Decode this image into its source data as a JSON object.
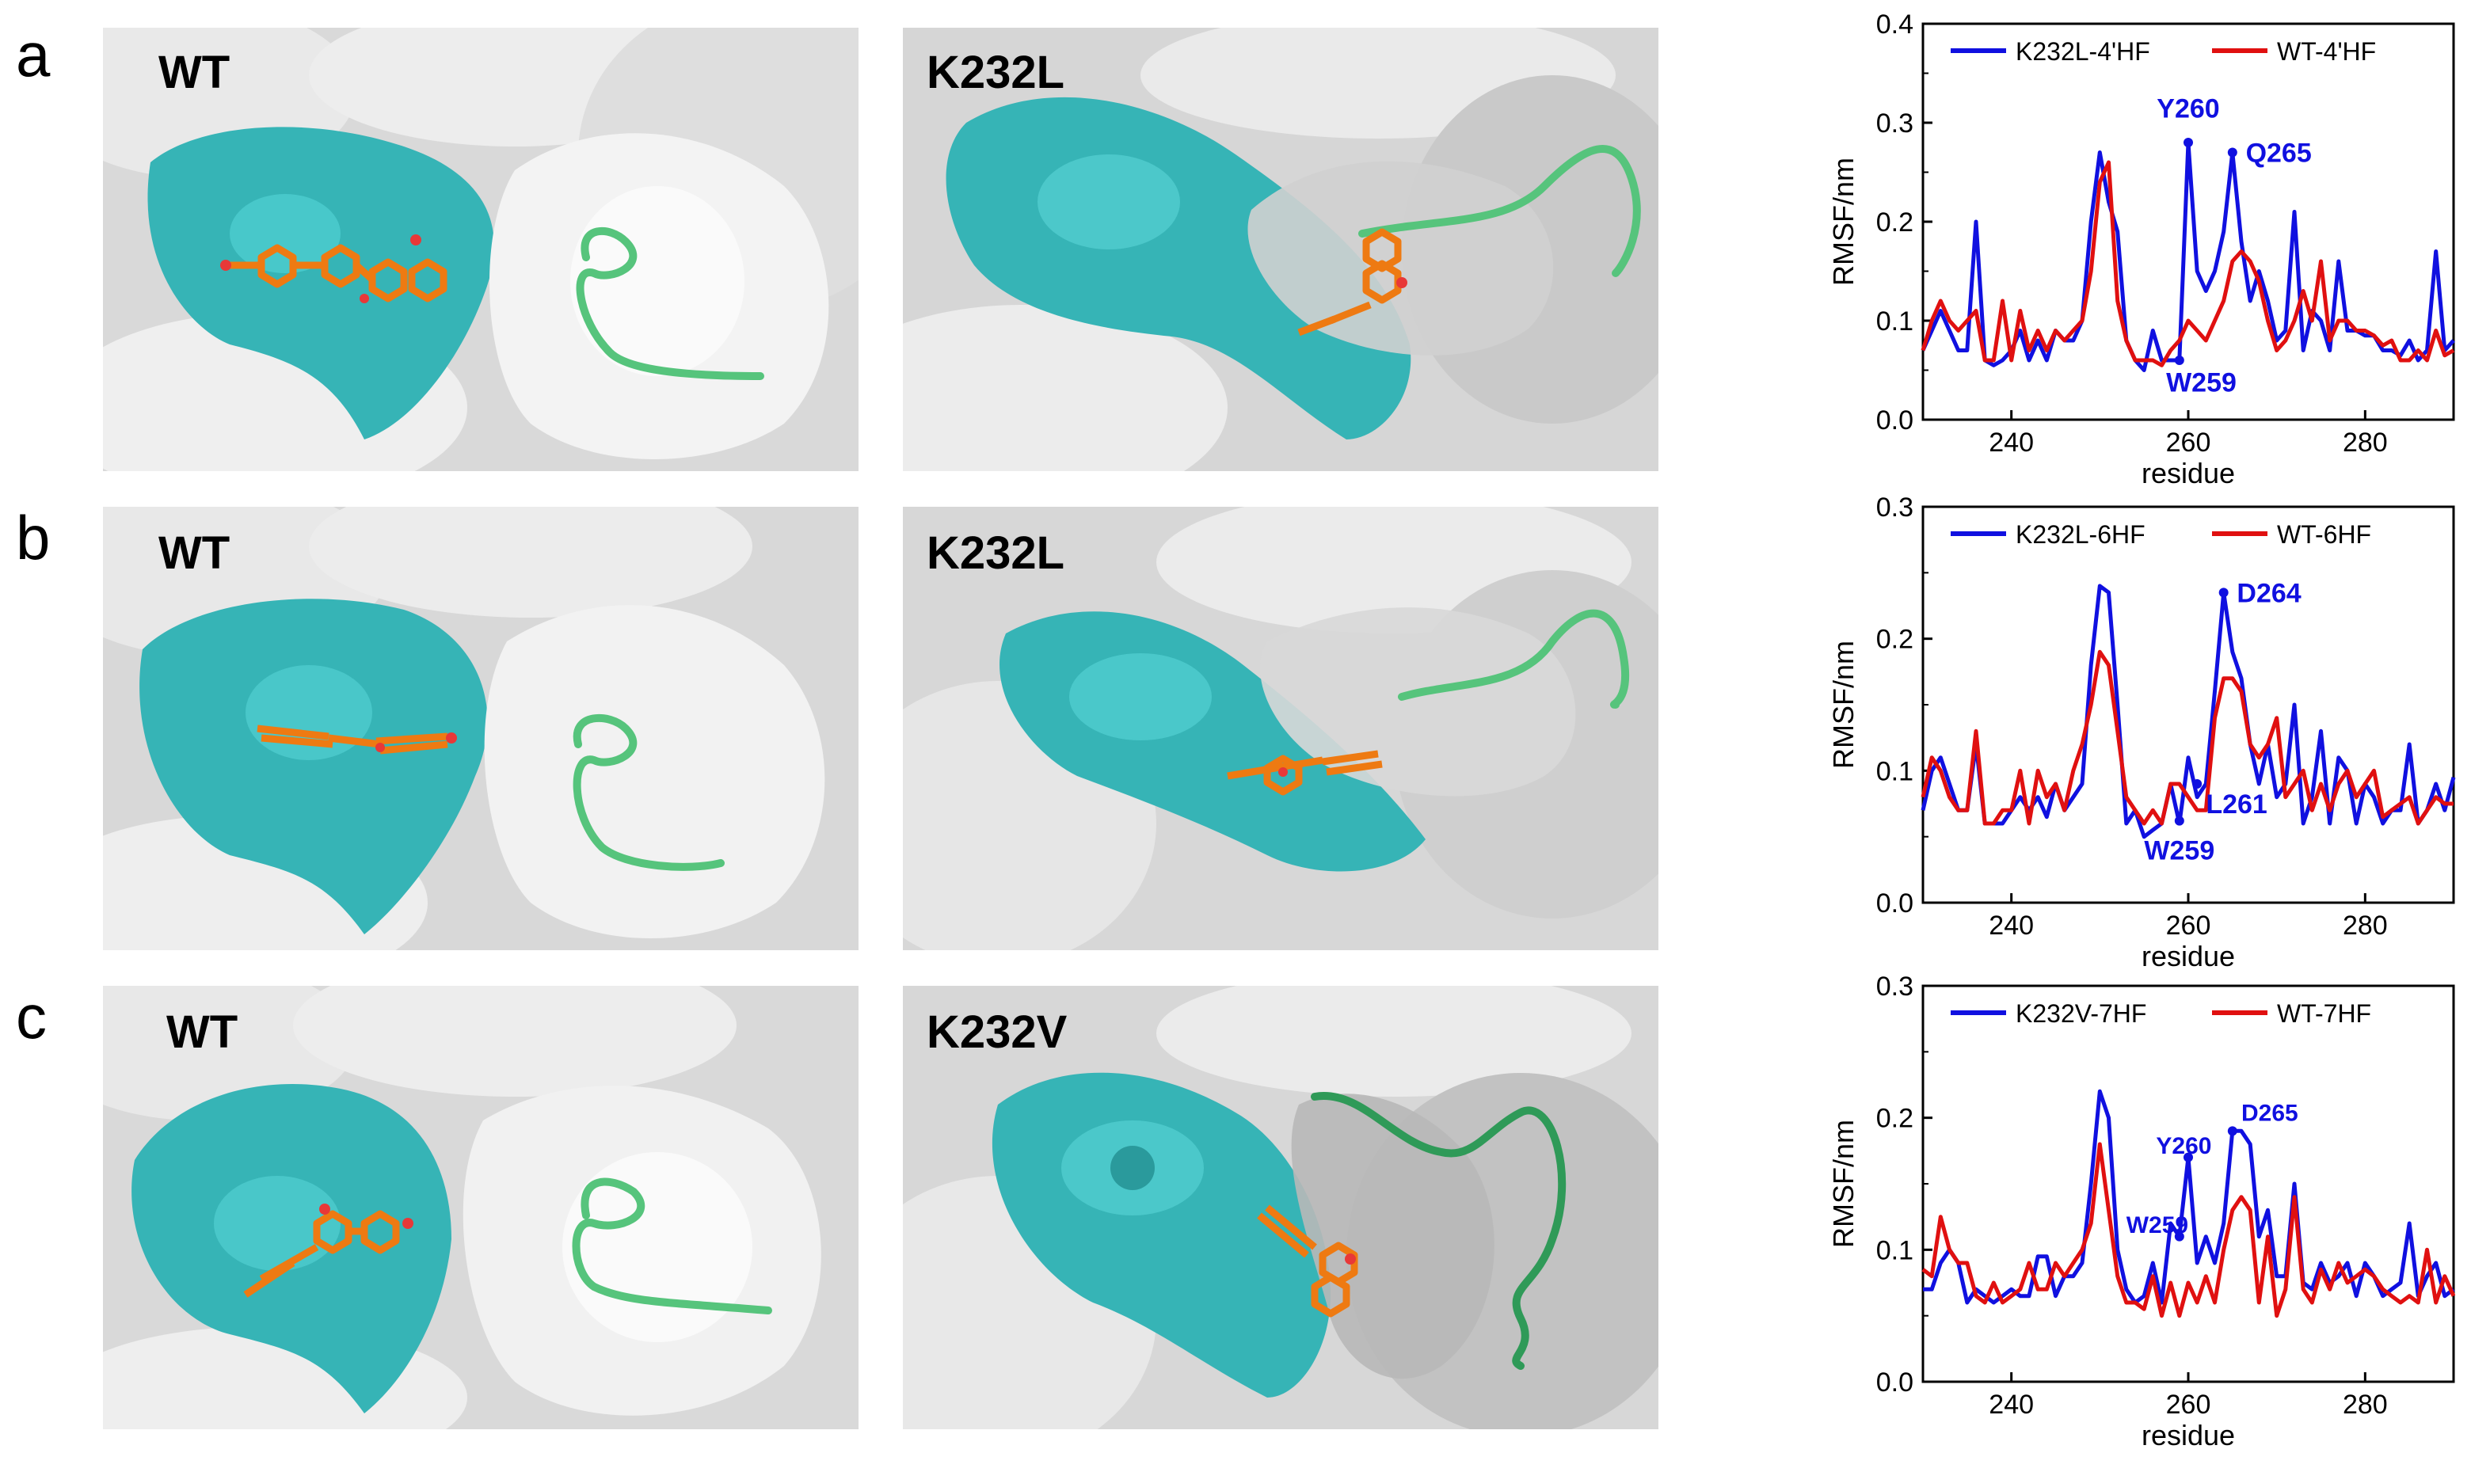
{
  "rows": [
    {
      "letter": "a",
      "left_label": "WT",
      "right_label": "K232L",
      "chart_data": {
        "type": "line",
        "xlabel": "residue",
        "ylabel": "RMSF/nm",
        "xlim": [
          230,
          290
        ],
        "ylim": [
          0,
          0.4
        ],
        "xticks": [
          "240",
          "260",
          "280"
        ],
        "yticks": [
          "0.0",
          "0.1",
          "0.2",
          "0.3",
          "0.4"
        ],
        "legend_position": "top",
        "series": [
          {
            "name": "K232L-4'HF",
            "color": "#1010e0",
            "x": [
              230,
              231,
              232,
              233,
              234,
              235,
              236,
              237,
              238,
              239,
              240,
              241,
              242,
              243,
              244,
              245,
              246,
              247,
              248,
              249,
              250,
              251,
              252,
              253,
              254,
              255,
              256,
              257,
              258,
              259,
              260,
              261,
              262,
              263,
              264,
              265,
              266,
              267,
              268,
              269,
              270,
              271,
              272,
              273,
              274,
              275,
              276,
              277,
              278,
              279,
              280,
              281,
              282,
              283,
              284,
              285,
              286,
              287,
              288,
              289,
              290
            ],
            "y": [
              0.07,
              0.09,
              0.11,
              0.09,
              0.07,
              0.07,
              0.2,
              0.06,
              0.055,
              0.06,
              0.07,
              0.09,
              0.06,
              0.08,
              0.06,
              0.09,
              0.08,
              0.08,
              0.1,
              0.2,
              0.27,
              0.22,
              0.19,
              0.08,
              0.06,
              0.05,
              0.09,
              0.06,
              0.06,
              0.06,
              0.28,
              0.15,
              0.13,
              0.15,
              0.19,
              0.27,
              0.18,
              0.12,
              0.15,
              0.12,
              0.08,
              0.09,
              0.21,
              0.07,
              0.11,
              0.1,
              0.07,
              0.16,
              0.09,
              0.09,
              0.085,
              0.085,
              0.07,
              0.07,
              0.065,
              0.08,
              0.06,
              0.07,
              0.17,
              0.07,
              0.08
            ]
          },
          {
            "name": "WT-4'HF",
            "color": "#e01010",
            "x": [
              230,
              231,
              232,
              233,
              234,
              235,
              236,
              237,
              238,
              239,
              240,
              241,
              242,
              243,
              244,
              245,
              246,
              247,
              248,
              249,
              250,
              251,
              252,
              253,
              254,
              255,
              256,
              257,
              258,
              259,
              260,
              261,
              262,
              263,
              264,
              265,
              266,
              267,
              268,
              269,
              270,
              271,
              272,
              273,
              274,
              275,
              276,
              277,
              278,
              279,
              280,
              281,
              282,
              283,
              284,
              285,
              286,
              287,
              288,
              289,
              290
            ],
            "y": [
              0.07,
              0.1,
              0.12,
              0.1,
              0.09,
              0.1,
              0.11,
              0.06,
              0.06,
              0.12,
              0.06,
              0.11,
              0.07,
              0.09,
              0.07,
              0.09,
              0.08,
              0.09,
              0.1,
              0.15,
              0.24,
              0.26,
              0.12,
              0.08,
              0.06,
              0.06,
              0.06,
              0.055,
              0.07,
              0.08,
              0.1,
              0.09,
              0.08,
              0.1,
              0.12,
              0.16,
              0.17,
              0.16,
              0.14,
              0.1,
              0.07,
              0.08,
              0.1,
              0.13,
              0.1,
              0.16,
              0.08,
              0.1,
              0.1,
              0.09,
              0.09,
              0.085,
              0.075,
              0.08,
              0.06,
              0.06,
              0.07,
              0.06,
              0.09,
              0.065,
              0.07
            ]
          }
        ],
        "annotations": [
          {
            "text": "Y260",
            "x": 260,
            "y": 0.28,
            "tx": 260,
            "ty": 0.315,
            "anchor": "middle"
          },
          {
            "text": "Q265",
            "x": 265,
            "y": 0.27,
            "tx": 266.5,
            "ty": 0.27,
            "anchor": "start"
          },
          {
            "text": "W259",
            "x": 259,
            "y": 0.06,
            "tx": 257.5,
            "ty": 0.038,
            "anchor": "start"
          }
        ],
        "annotation_font": "sans"
      }
    },
    {
      "letter": "b",
      "left_label": "WT",
      "right_label": "K232L",
      "chart_data": {
        "type": "line",
        "xlabel": "residue",
        "ylabel": "RMSF/nm",
        "xlim": [
          230,
          290
        ],
        "ylim": [
          0,
          0.3
        ],
        "xticks": [
          "240",
          "260",
          "280"
        ],
        "yticks": [
          "0.0",
          "0.1",
          "0.2",
          "0.3"
        ],
        "legend_position": "top",
        "series": [
          {
            "name": "K232L-6HF",
            "color": "#1010e0",
            "x": [
              230,
              231,
              232,
              233,
              234,
              235,
              236,
              237,
              238,
              239,
              240,
              241,
              242,
              243,
              244,
              245,
              246,
              247,
              248,
              249,
              250,
              251,
              252,
              253,
              254,
              255,
              256,
              257,
              258,
              259,
              260,
              261,
              262,
              263,
              264,
              265,
              266,
              267,
              268,
              269,
              270,
              271,
              272,
              273,
              274,
              275,
              276,
              277,
              278,
              279,
              280,
              281,
              282,
              283,
              284,
              285,
              286,
              287,
              288,
              289,
              290
            ],
            "y": [
              0.07,
              0.1,
              0.11,
              0.09,
              0.07,
              0.07,
              0.12,
              0.06,
              0.06,
              0.06,
              0.07,
              0.08,
              0.07,
              0.08,
              0.065,
              0.09,
              0.07,
              0.08,
              0.09,
              0.18,
              0.24,
              0.235,
              0.15,
              0.06,
              0.07,
              0.05,
              0.055,
              0.06,
              0.09,
              0.06,
              0.11,
              0.08,
              0.09,
              0.16,
              0.235,
              0.19,
              0.17,
              0.12,
              0.09,
              0.12,
              0.08,
              0.09,
              0.15,
              0.06,
              0.08,
              0.13,
              0.06,
              0.11,
              0.1,
              0.06,
              0.09,
              0.08,
              0.06,
              0.07,
              0.07,
              0.12,
              0.06,
              0.07,
              0.09,
              0.07,
              0.095
            ]
          },
          {
            "name": "WT-6HF",
            "color": "#e01010",
            "x": [
              230,
              231,
              232,
              233,
              234,
              235,
              236,
              237,
              238,
              239,
              240,
              241,
              242,
              243,
              244,
              245,
              246,
              247,
              248,
              249,
              250,
              251,
              252,
              253,
              254,
              255,
              256,
              257,
              258,
              259,
              260,
              261,
              262,
              263,
              264,
              265,
              266,
              267,
              268,
              269,
              270,
              271,
              272,
              273,
              274,
              275,
              276,
              277,
              278,
              279,
              280,
              281,
              282,
              283,
              284,
              285,
              286,
              287,
              288,
              289,
              290
            ],
            "y": [
              0.08,
              0.11,
              0.1,
              0.08,
              0.07,
              0.07,
              0.13,
              0.06,
              0.06,
              0.07,
              0.07,
              0.1,
              0.06,
              0.1,
              0.08,
              0.09,
              0.07,
              0.1,
              0.12,
              0.15,
              0.19,
              0.18,
              0.13,
              0.08,
              0.07,
              0.06,
              0.07,
              0.06,
              0.09,
              0.09,
              0.08,
              0.07,
              0.07,
              0.14,
              0.17,
              0.17,
              0.16,
              0.12,
              0.11,
              0.12,
              0.14,
              0.08,
              0.09,
              0.1,
              0.07,
              0.09,
              0.07,
              0.09,
              0.1,
              0.08,
              0.09,
              0.1,
              0.065,
              0.07,
              0.075,
              0.08,
              0.06,
              0.07,
              0.08,
              0.075,
              0.075
            ]
          }
        ],
        "annotations": [
          {
            "text": "D264",
            "x": 264,
            "y": 0.235,
            "tx": 265.5,
            "ty": 0.235,
            "anchor": "start"
          },
          {
            "text": "L261",
            "x": 261,
            "y": 0.09,
            "tx": 262,
            "ty": 0.075,
            "anchor": "start"
          },
          {
            "text": "W259",
            "x": 259,
            "y": 0.062,
            "tx": 259,
            "ty": 0.04,
            "anchor": "middle"
          }
        ],
        "annotation_font": "sans"
      }
    },
    {
      "letter": "c",
      "left_label": "WT",
      "right_label": "K232V",
      "chart_data": {
        "type": "line",
        "xlabel": "residue",
        "ylabel": "RMSF/nm",
        "xlim": [
          230,
          290
        ],
        "ylim": [
          0,
          0.3
        ],
        "xticks": [
          "240",
          "260",
          "280"
        ],
        "yticks": [
          "0.0",
          "0.1",
          "0.2",
          "0.3"
        ],
        "legend_position": "top",
        "series": [
          {
            "name": "K232V-7HF",
            "color": "#1010e0",
            "x": [
              230,
              231,
              232,
              233,
              234,
              235,
              236,
              237,
              238,
              239,
              240,
              241,
              242,
              243,
              244,
              245,
              246,
              247,
              248,
              249,
              250,
              251,
              252,
              253,
              254,
              255,
              256,
              257,
              258,
              259,
              260,
              261,
              262,
              263,
              264,
              265,
              266,
              267,
              268,
              269,
              270,
              271,
              272,
              273,
              274,
              275,
              276,
              277,
              278,
              279,
              280,
              281,
              282,
              283,
              284,
              285,
              286,
              287,
              288,
              289,
              290
            ],
            "y": [
              0.07,
              0.07,
              0.09,
              0.1,
              0.09,
              0.06,
              0.07,
              0.065,
              0.06,
              0.065,
              0.07,
              0.065,
              0.065,
              0.095,
              0.095,
              0.065,
              0.08,
              0.08,
              0.09,
              0.15,
              0.22,
              0.2,
              0.1,
              0.07,
              0.06,
              0.065,
              0.09,
              0.06,
              0.12,
              0.11,
              0.17,
              0.09,
              0.11,
              0.09,
              0.12,
              0.19,
              0.19,
              0.18,
              0.11,
              0.13,
              0.08,
              0.08,
              0.15,
              0.075,
              0.07,
              0.09,
              0.075,
              0.08,
              0.09,
              0.065,
              0.09,
              0.08,
              0.065,
              0.07,
              0.075,
              0.12,
              0.065,
              0.08,
              0.09,
              0.065,
              0.07
            ]
          },
          {
            "name": "WT-7HF",
            "color": "#e01010",
            "x": [
              230,
              231,
              232,
              233,
              234,
              235,
              236,
              237,
              238,
              239,
              240,
              241,
              242,
              243,
              244,
              245,
              246,
              247,
              248,
              249,
              250,
              251,
              252,
              253,
              254,
              255,
              256,
              257,
              258,
              259,
              260,
              261,
              262,
              263,
              264,
              265,
              266,
              267,
              268,
              269,
              270,
              271,
              272,
              273,
              274,
              275,
              276,
              277,
              278,
              279,
              280,
              281,
              282,
              283,
              284,
              285,
              286,
              287,
              288,
              289,
              290
            ],
            "y": [
              0.085,
              0.08,
              0.125,
              0.1,
              0.09,
              0.09,
              0.065,
              0.06,
              0.075,
              0.06,
              0.065,
              0.07,
              0.09,
              0.07,
              0.07,
              0.09,
              0.08,
              0.09,
              0.1,
              0.12,
              0.18,
              0.13,
              0.08,
              0.06,
              0.06,
              0.055,
              0.08,
              0.05,
              0.075,
              0.05,
              0.075,
              0.06,
              0.08,
              0.06,
              0.1,
              0.13,
              0.14,
              0.13,
              0.06,
              0.11,
              0.05,
              0.07,
              0.14,
              0.07,
              0.06,
              0.085,
              0.07,
              0.09,
              0.075,
              0.08,
              0.085,
              0.08,
              0.07,
              0.065,
              0.06,
              0.065,
              0.06,
              0.1,
              0.06,
              0.08,
              0.065
            ]
          }
        ],
        "annotations": [
          {
            "text": "D265",
            "x": 265,
            "y": 0.19,
            "tx": 266,
            "ty": 0.205,
            "anchor": "start"
          },
          {
            "text": "Y260",
            "x": 260,
            "y": 0.17,
            "tx": 259.5,
            "ty": 0.18,
            "anchor": "middle"
          },
          {
            "text": "W259",
            "x": 259,
            "y": 0.11,
            "tx": 256.5,
            "ty": 0.12,
            "anchor": "middle"
          }
        ],
        "annotation_font": "serif"
      }
    }
  ],
  "colors": {
    "pocket": "#36b4b6",
    "surface": "#e3e3e3",
    "loop": "#56c47c",
    "ligand": "#ee7a12",
    "oxygen": "#e83838",
    "annotation": "#1010e0"
  }
}
